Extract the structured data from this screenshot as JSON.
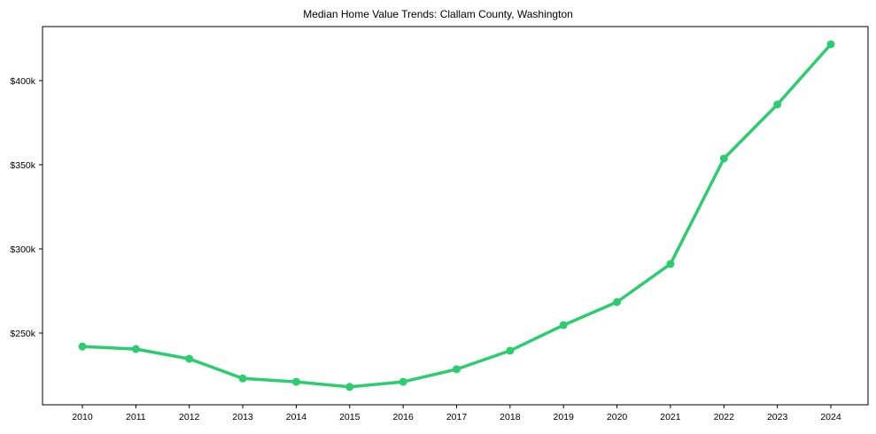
{
  "chart_data": {
    "type": "line",
    "title": "Median Home Value Trends: Clallam County, Washington",
    "xlabel": "",
    "ylabel": "",
    "x": [
      2010,
      2011,
      2012,
      2013,
      2014,
      2015,
      2016,
      2017,
      2018,
      2019,
      2020,
      2021,
      2022,
      2023,
      2024
    ],
    "series": [
      {
        "name": "Median Home Value",
        "color": "#2ecc71",
        "values": [
          242000,
          240500,
          234700,
          223000,
          221000,
          218000,
          221000,
          228500,
          239500,
          254700,
          268400,
          291000,
          353700,
          385800,
          421600
        ]
      }
    ],
    "y_ticks": [
      {
        "value": 250000,
        "label": "$250k"
      },
      {
        "value": 300000,
        "label": "$300k"
      },
      {
        "value": 350000,
        "label": "$350k"
      },
      {
        "value": 400000,
        "label": "$400k"
      }
    ],
    "x_tick_labels": [
      "2010",
      "2011",
      "2012",
      "2013",
      "2014",
      "2015",
      "2016",
      "2017",
      "2018",
      "2019",
      "2020",
      "2021",
      "2022",
      "2023",
      "2024"
    ],
    "ylim": [
      208000,
      433000
    ],
    "grid": false,
    "legend": null
  }
}
